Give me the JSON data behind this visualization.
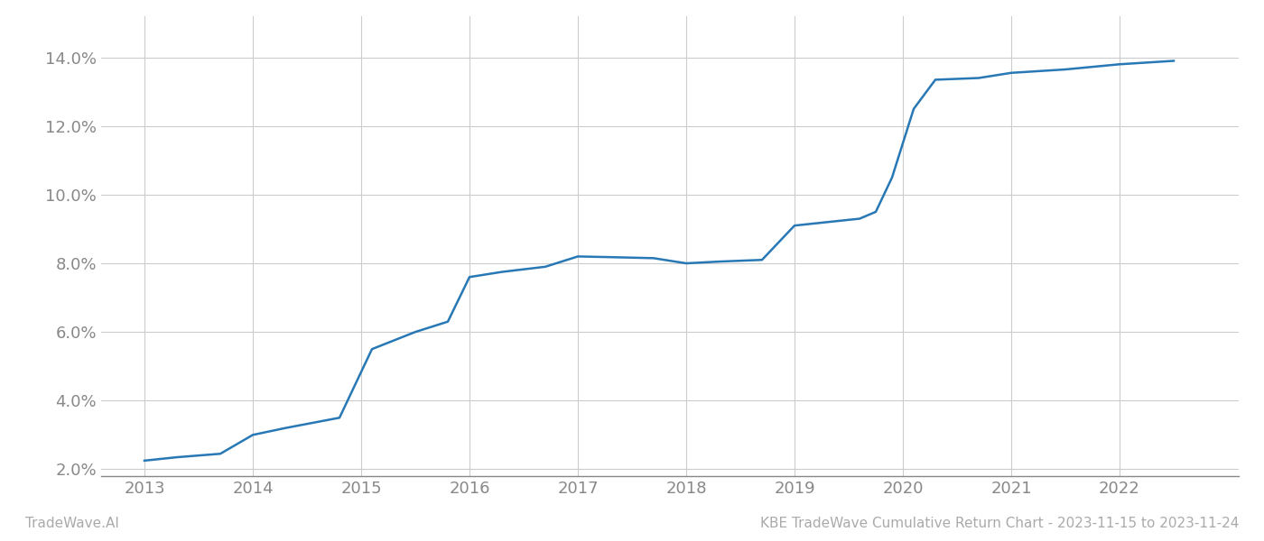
{
  "x_years": [
    2013.0,
    2013.3,
    2013.7,
    2014.0,
    2014.3,
    2014.8,
    2015.1,
    2015.5,
    2015.8,
    2016.0,
    2016.3,
    2016.7,
    2017.0,
    2017.3,
    2017.7,
    2018.0,
    2018.3,
    2018.7,
    2019.0,
    2019.3,
    2019.6,
    2019.75,
    2019.9,
    2020.1,
    2020.3,
    2020.7,
    2021.0,
    2021.5,
    2022.0,
    2022.5
  ],
  "y_values": [
    2.25,
    2.35,
    2.45,
    3.0,
    3.2,
    3.5,
    5.5,
    6.0,
    6.3,
    7.6,
    7.75,
    7.9,
    8.2,
    8.18,
    8.15,
    8.0,
    8.05,
    8.1,
    9.1,
    9.2,
    9.3,
    9.5,
    10.5,
    12.5,
    13.35,
    13.4,
    13.55,
    13.65,
    13.8,
    13.9
  ],
  "line_color": "#2878b5",
  "line_width": 1.8,
  "background_color": "#ffffff",
  "grid_color": "#cccccc",
  "ylabel_color": "#888888",
  "xlabel_color": "#888888",
  "tick_color": "#888888",
  "ylim": [
    1.8,
    15.2
  ],
  "xlim": [
    2012.6,
    2023.1
  ],
  "yticks": [
    2.0,
    4.0,
    6.0,
    8.0,
    10.0,
    12.0,
    14.0
  ],
  "xticks": [
    2013,
    2014,
    2015,
    2016,
    2017,
    2018,
    2019,
    2020,
    2021,
    2022
  ],
  "footer_left": "TradeWave.AI",
  "footer_right": "KBE TradeWave Cumulative Return Chart - 2023-11-15 to 2023-11-24",
  "footer_color": "#aaaaaa",
  "footer_fontsize": 11,
  "tick_fontsize": 13,
  "spine_color": "#888888"
}
